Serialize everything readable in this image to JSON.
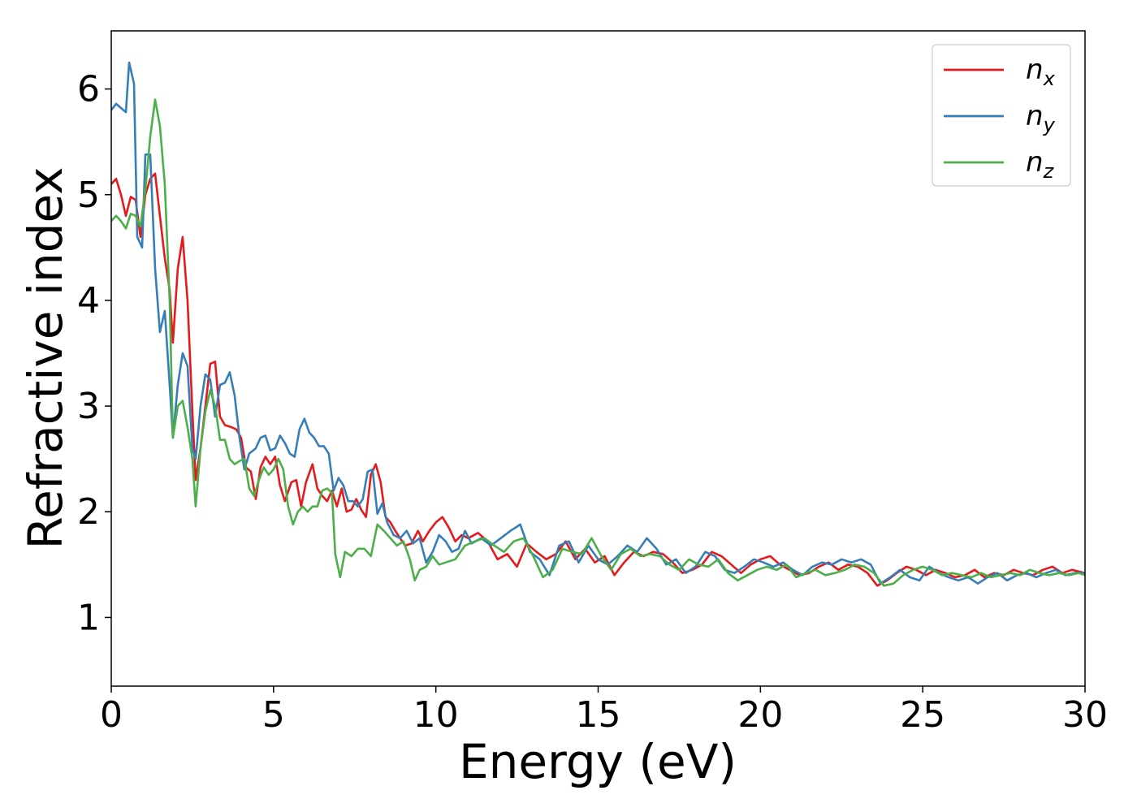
{
  "chart_data": {
    "type": "line",
    "xlabel": "Energy (eV)",
    "ylabel": "Refractive index",
    "xlim": [
      0,
      30
    ],
    "ylim": [
      0.35,
      6.55
    ],
    "xticks": [
      0,
      5,
      10,
      15,
      20,
      25,
      30
    ],
    "xtick_labels": [
      "0",
      "5",
      "10",
      "15",
      "20",
      "25",
      "30"
    ],
    "yticks": [
      1,
      2,
      3,
      4,
      5,
      6
    ],
    "ytick_labels": [
      "1",
      "2",
      "3",
      "4",
      "5",
      "6"
    ],
    "grid": false,
    "legend_position": "top-right",
    "series": [
      {
        "name": "n_x",
        "label_base": "n",
        "label_sub": "x",
        "color": "#e41a1c",
        "x": [
          0,
          0.15,
          0.3,
          0.45,
          0.6,
          0.75,
          0.9,
          1.05,
          1.2,
          1.35,
          1.5,
          1.65,
          1.8,
          1.9,
          2.05,
          2.2,
          2.35,
          2.5,
          2.6,
          2.75,
          2.9,
          3.05,
          3.2,
          3.35,
          3.5,
          3.7,
          3.85,
          4.0,
          4.15,
          4.3,
          4.45,
          4.6,
          4.75,
          4.9,
          5.05,
          5.2,
          5.35,
          5.55,
          5.7,
          5.85,
          6.0,
          6.2,
          6.35,
          6.5,
          6.65,
          6.8,
          6.95,
          7.1,
          7.25,
          7.4,
          7.55,
          7.7,
          7.85,
          8.0,
          8.15,
          8.3,
          8.45,
          8.6,
          8.75,
          8.9,
          9.05,
          9.25,
          9.45,
          9.6,
          9.8,
          10.0,
          10.2,
          10.4,
          10.6,
          10.8,
          11.0,
          11.3,
          11.6,
          11.9,
          12.2,
          12.5,
          12.8,
          13.1,
          13.4,
          13.7,
          14.0,
          14.3,
          14.6,
          14.9,
          15.2,
          15.5,
          15.8,
          16.1,
          16.4,
          16.7,
          17.0,
          17.3,
          17.6,
          17.9,
          18.2,
          18.5,
          18.8,
          19.1,
          19.4,
          19.7,
          20.0,
          20.3,
          20.6,
          20.9,
          21.2,
          21.5,
          21.8,
          22.1,
          22.4,
          22.7,
          23.0,
          23.3,
          23.6,
          23.9,
          24.2,
          24.5,
          24.8,
          25.1,
          25.4,
          25.7,
          26.0,
          26.3,
          26.6,
          26.9,
          27.2,
          27.5,
          27.8,
          28.1,
          28.4,
          28.7,
          29.0,
          29.3,
          29.6,
          30.0
        ],
        "y": [
          5.1,
          5.15,
          5.0,
          4.8,
          4.98,
          4.95,
          4.6,
          5.0,
          5.15,
          5.2,
          4.8,
          4.4,
          4.1,
          3.6,
          4.3,
          4.6,
          4.0,
          2.95,
          2.3,
          2.6,
          3.0,
          3.4,
          3.42,
          2.9,
          2.82,
          2.8,
          2.78,
          2.7,
          2.42,
          2.38,
          2.12,
          2.42,
          2.52,
          2.45,
          2.52,
          2.25,
          2.1,
          2.28,
          2.3,
          2.05,
          2.28,
          2.45,
          2.22,
          2.15,
          2.1,
          2.2,
          2.05,
          2.22,
          2.0,
          2.02,
          2.12,
          2.02,
          1.95,
          2.35,
          2.45,
          2.28,
          1.95,
          1.9,
          1.82,
          1.75,
          1.68,
          1.7,
          1.82,
          1.72,
          1.82,
          1.9,
          1.95,
          1.85,
          1.72,
          1.78,
          1.75,
          1.8,
          1.72,
          1.55,
          1.6,
          1.48,
          1.7,
          1.62,
          1.55,
          1.6,
          1.72,
          1.55,
          1.65,
          1.52,
          1.58,
          1.4,
          1.52,
          1.62,
          1.58,
          1.62,
          1.6,
          1.52,
          1.42,
          1.45,
          1.5,
          1.62,
          1.58,
          1.5,
          1.42,
          1.5,
          1.55,
          1.58,
          1.5,
          1.45,
          1.4,
          1.42,
          1.48,
          1.52,
          1.45,
          1.5,
          1.48,
          1.42,
          1.3,
          1.35,
          1.42,
          1.48,
          1.45,
          1.4,
          1.45,
          1.42,
          1.38,
          1.4,
          1.45,
          1.38,
          1.42,
          1.4,
          1.45,
          1.42,
          1.4,
          1.45,
          1.48,
          1.42,
          1.45,
          1.42
        ]
      },
      {
        "name": "n_y",
        "label_base": "n",
        "label_sub": "y",
        "color": "#377eb8",
        "x": [
          0,
          0.15,
          0.3,
          0.45,
          0.55,
          0.7,
          0.8,
          0.95,
          1.05,
          1.2,
          1.35,
          1.5,
          1.65,
          1.8,
          1.9,
          2.05,
          2.2,
          2.35,
          2.5,
          2.6,
          2.75,
          2.9,
          3.05,
          3.2,
          3.35,
          3.5,
          3.65,
          3.8,
          3.95,
          4.1,
          4.25,
          4.45,
          4.6,
          4.75,
          4.9,
          5.05,
          5.2,
          5.35,
          5.5,
          5.65,
          5.8,
          5.95,
          6.1,
          6.25,
          6.4,
          6.55,
          6.7,
          6.85,
          7.0,
          7.15,
          7.3,
          7.45,
          7.6,
          7.75,
          7.9,
          8.05,
          8.2,
          8.35,
          8.5,
          8.7,
          8.9,
          9.1,
          9.3,
          9.5,
          9.7,
          9.9,
          10.1,
          10.3,
          10.5,
          10.7,
          10.9,
          11.1,
          11.4,
          11.7,
          12.0,
          12.3,
          12.6,
          12.9,
          13.2,
          13.5,
          13.8,
          14.1,
          14.4,
          14.7,
          15.0,
          15.3,
          15.6,
          15.9,
          16.2,
          16.5,
          16.8,
          17.1,
          17.4,
          17.7,
          18.0,
          18.3,
          18.6,
          18.9,
          19.2,
          19.5,
          19.8,
          20.1,
          20.4,
          20.7,
          21.0,
          21.3,
          21.6,
          21.9,
          22.2,
          22.5,
          22.8,
          23.1,
          23.4,
          23.7,
          24.0,
          24.3,
          24.6,
          24.9,
          25.2,
          25.5,
          25.8,
          26.1,
          26.4,
          26.7,
          27.0,
          27.3,
          27.6,
          27.9,
          28.2,
          28.5,
          28.8,
          29.1,
          29.4,
          29.7,
          30.0
        ],
        "y": [
          5.8,
          5.86,
          5.82,
          5.78,
          6.25,
          6.05,
          4.6,
          4.5,
          5.38,
          5.38,
          4.3,
          3.7,
          3.9,
          3.2,
          2.7,
          3.2,
          3.5,
          3.38,
          2.6,
          2.5,
          3.0,
          3.3,
          3.25,
          2.9,
          3.2,
          3.22,
          3.32,
          3.1,
          2.7,
          2.4,
          2.55,
          2.6,
          2.7,
          2.72,
          2.58,
          2.6,
          2.72,
          2.65,
          2.55,
          2.52,
          2.78,
          2.88,
          2.75,
          2.7,
          2.62,
          2.62,
          2.55,
          2.2,
          2.32,
          2.25,
          2.1,
          2.1,
          2.05,
          2.12,
          2.38,
          2.4,
          1.98,
          2.08,
          1.9,
          1.78,
          1.75,
          1.82,
          1.7,
          1.75,
          1.52,
          1.62,
          1.78,
          1.72,
          1.62,
          1.65,
          1.82,
          1.7,
          1.75,
          1.68,
          1.75,
          1.82,
          1.88,
          1.62,
          1.55,
          1.4,
          1.68,
          1.72,
          1.52,
          1.68,
          1.55,
          1.5,
          1.58,
          1.68,
          1.62,
          1.75,
          1.65,
          1.5,
          1.55,
          1.42,
          1.48,
          1.62,
          1.58,
          1.45,
          1.42,
          1.48,
          1.55,
          1.52,
          1.48,
          1.52,
          1.45,
          1.4,
          1.48,
          1.52,
          1.5,
          1.55,
          1.52,
          1.55,
          1.5,
          1.32,
          1.38,
          1.45,
          1.38,
          1.35,
          1.48,
          1.42,
          1.38,
          1.35,
          1.38,
          1.32,
          1.38,
          1.42,
          1.35,
          1.4,
          1.42,
          1.38,
          1.42,
          1.45,
          1.4,
          1.42,
          1.42
        ]
      },
      {
        "name": "n_z",
        "label_base": "n",
        "label_sub": "z",
        "color": "#4daf4a",
        "x": [
          0,
          0.15,
          0.3,
          0.45,
          0.6,
          0.75,
          0.9,
          1.05,
          1.2,
          1.35,
          1.5,
          1.65,
          1.8,
          1.9,
          2.05,
          2.2,
          2.35,
          2.5,
          2.6,
          2.75,
          2.9,
          3.05,
          3.2,
          3.35,
          3.5,
          3.65,
          3.8,
          3.95,
          4.1,
          4.25,
          4.4,
          4.55,
          4.7,
          4.85,
          5.0,
          5.15,
          5.3,
          5.45,
          5.6,
          5.75,
          5.9,
          6.05,
          6.2,
          6.35,
          6.5,
          6.65,
          6.8,
          6.9,
          7.05,
          7.2,
          7.4,
          7.6,
          7.8,
          8.0,
          8.2,
          8.4,
          8.6,
          8.8,
          9.0,
          9.2,
          9.35,
          9.5,
          9.7,
          9.9,
          10.1,
          10.3,
          10.6,
          10.9,
          11.2,
          11.5,
          11.8,
          12.1,
          12.4,
          12.7,
          13.0,
          13.3,
          13.6,
          13.9,
          14.2,
          14.5,
          14.8,
          15.1,
          15.4,
          15.7,
          16.0,
          16.3,
          16.6,
          16.9,
          17.2,
          17.5,
          17.8,
          18.1,
          18.4,
          18.7,
          19.0,
          19.3,
          19.6,
          19.9,
          20.2,
          20.5,
          20.8,
          21.1,
          21.4,
          21.7,
          22.0,
          22.3,
          22.6,
          22.9,
          23.2,
          23.5,
          23.8,
          24.1,
          24.4,
          24.7,
          25.0,
          25.3,
          25.6,
          25.9,
          26.2,
          26.5,
          26.8,
          27.1,
          27.4,
          27.7,
          28.0,
          28.3,
          28.6,
          28.9,
          29.2,
          29.5,
          29.8,
          30.0
        ],
        "y": [
          4.75,
          4.8,
          4.75,
          4.68,
          4.82,
          4.8,
          4.7,
          5.05,
          5.55,
          5.9,
          5.65,
          5.1,
          4.0,
          2.7,
          3.0,
          3.05,
          2.8,
          2.5,
          2.05,
          2.6,
          2.95,
          3.15,
          3.0,
          2.68,
          2.68,
          2.5,
          2.45,
          2.48,
          2.5,
          2.22,
          2.15,
          2.3,
          2.42,
          2.35,
          2.4,
          2.5,
          2.4,
          2.05,
          1.88,
          2.0,
          2.05,
          2.0,
          2.05,
          2.05,
          2.2,
          2.22,
          2.18,
          1.6,
          1.38,
          1.62,
          1.58,
          1.65,
          1.65,
          1.58,
          1.88,
          1.82,
          1.75,
          1.68,
          1.72,
          1.55,
          1.35,
          1.45,
          1.48,
          1.58,
          1.5,
          1.52,
          1.55,
          1.68,
          1.72,
          1.75,
          1.68,
          1.62,
          1.72,
          1.75,
          1.58,
          1.38,
          1.45,
          1.65,
          1.62,
          1.6,
          1.75,
          1.58,
          1.45,
          1.6,
          1.65,
          1.58,
          1.6,
          1.58,
          1.5,
          1.45,
          1.55,
          1.5,
          1.48,
          1.55,
          1.42,
          1.35,
          1.4,
          1.45,
          1.48,
          1.45,
          1.5,
          1.38,
          1.42,
          1.45,
          1.4,
          1.42,
          1.45,
          1.5,
          1.48,
          1.42,
          1.3,
          1.32,
          1.4,
          1.45,
          1.48,
          1.45,
          1.4,
          1.42,
          1.4,
          1.38,
          1.42,
          1.38,
          1.4,
          1.42,
          1.4,
          1.45,
          1.42,
          1.4,
          1.42,
          1.4,
          1.42,
          1.4
        ]
      }
    ]
  }
}
